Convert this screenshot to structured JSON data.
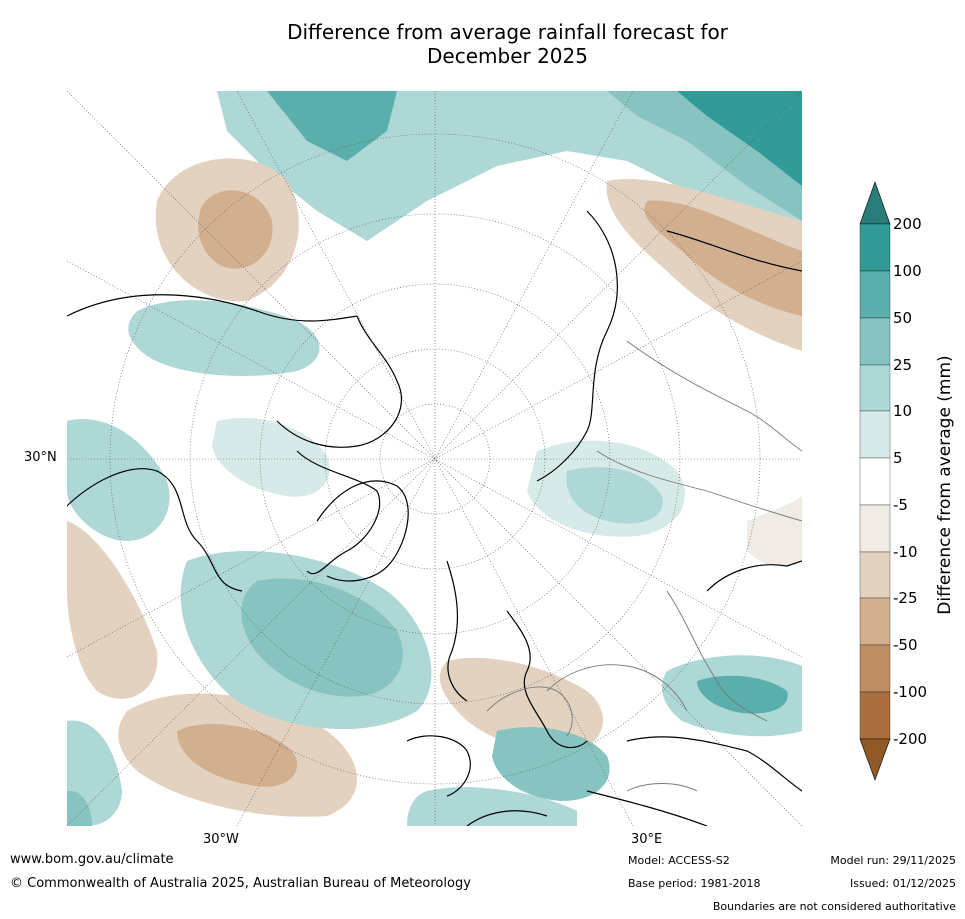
{
  "title": {
    "line1": "Difference from average rainfall forecast for",
    "line2": "December 2025"
  },
  "map": {
    "projection": "North polar stereographic",
    "lat_label": "30°N",
    "lon_labels": [
      "30°W",
      "30°E"
    ]
  },
  "colorbar": {
    "label": "Difference from average (mm)",
    "ticks": [
      "200",
      "100",
      "50",
      "25",
      "10",
      "5",
      "-5",
      "-10",
      "-25",
      "-50",
      "-100",
      "-200"
    ],
    "colors": {
      "wet_extreme": "#2a7c7a",
      "wet_200": "#329b98",
      "wet_100": "#5aaeab",
      "wet_50": "#86c3c1",
      "wet_25": "#aed8d6",
      "wet_10": "#d6ebe9",
      "neutral": "#ffffff",
      "dry_5": "#f1ebe5",
      "dry_10": "#e3d2c0",
      "dry_25": "#d2b08f",
      "dry_50": "#be8f62",
      "dry_100": "#a96f3f",
      "dry_extreme": "#8f5a28"
    }
  },
  "footer": {
    "website": "www.bom.gov.au/climate",
    "copyright": "© Commonwealth of Australia 2025, Australian Bureau of Meteorology",
    "model": "Model: ACCESS-S2",
    "base_period": "Base period: 1981-2018",
    "model_run": "Model run: 29/11/2025",
    "issued": "Issued: 01/12/2025",
    "disclaimer": "Boundaries are not considered authoritative"
  }
}
